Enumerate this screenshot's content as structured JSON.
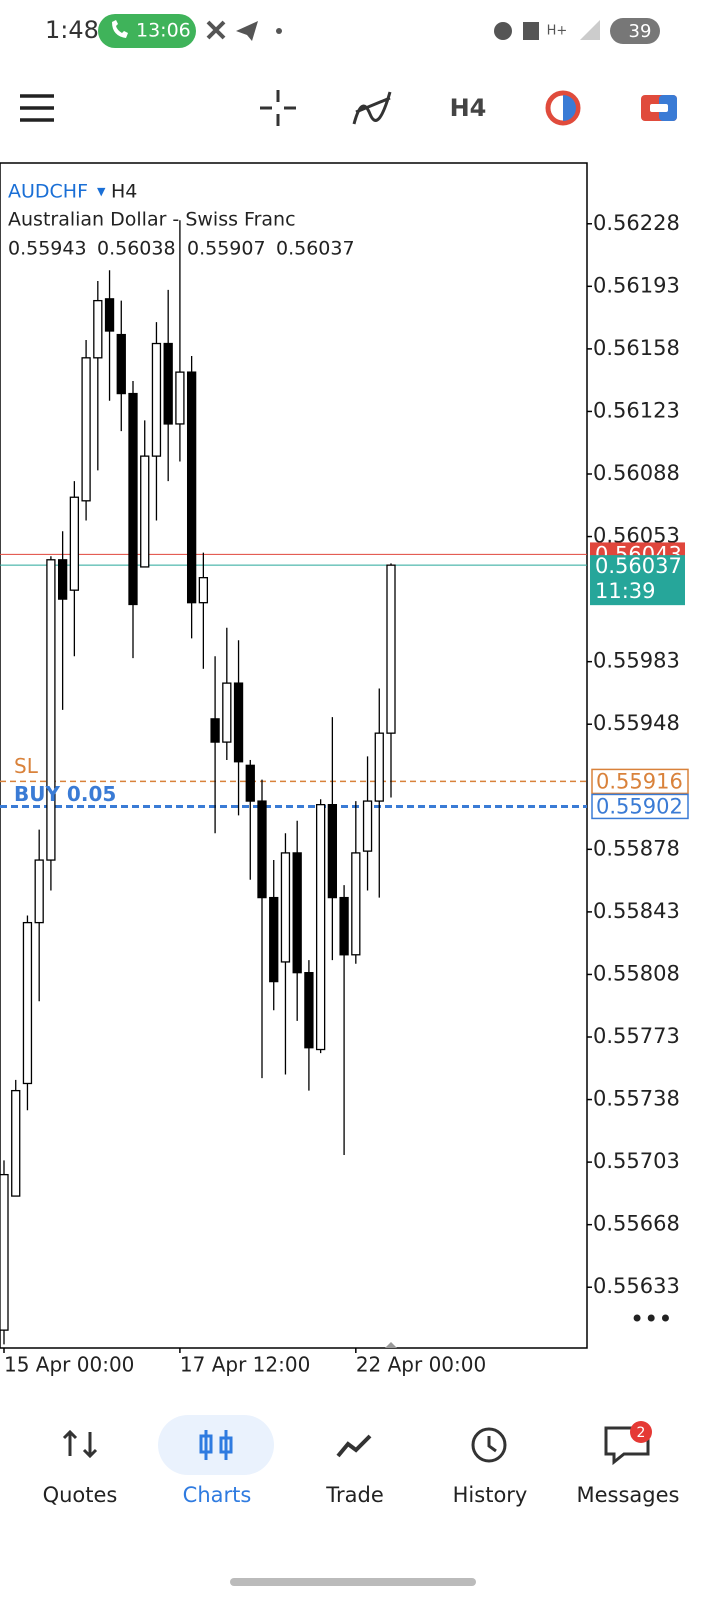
{
  "status_bar": {
    "time": "1:48",
    "call": "13:06",
    "battery": "39"
  },
  "toolbar": {
    "timeframe": "H4"
  },
  "chart_data": {
    "type": "candlestick",
    "symbol": "AUDCHF",
    "timeframe": "H4",
    "description": "Australian Dollar - Swiss Franc",
    "categories": [
      "15 Apr 00:00",
      null,
      null,
      null,
      null,
      null,
      null,
      null,
      null,
      null,
      null,
      null,
      null,
      null,
      null,
      "17 Apr 12:00",
      null,
      null,
      null,
      null,
      null,
      null,
      null,
      null,
      null,
      null,
      null,
      null,
      null,
      null,
      "22 Apr 00:00",
      null,
      null,
      null
    ],
    "open": [
      0.55609,
      0.55684,
      0.55747,
      0.55837,
      0.55872,
      0.5604,
      0.56023,
      0.56073,
      0.56153,
      0.56186,
      0.56166,
      0.56133,
      0.56036,
      0.56098,
      0.56161,
      0.56116,
      0.56145,
      0.56016,
      0.55951,
      0.55938,
      0.55971,
      0.55925,
      0.55905,
      0.55851,
      0.55815,
      0.55876,
      0.55809,
      0.55766,
      0.55903,
      0.55851,
      0.55819,
      0.55877,
      0.55905,
      0.55943
    ],
    "high": [
      0.55704,
      0.55749,
      0.55841,
      0.55889,
      0.56042,
      0.56056,
      0.56084,
      0.56163,
      0.56196,
      0.56202,
      0.56185,
      0.5614,
      0.56118,
      0.56173,
      0.56191,
      0.5623,
      0.56154,
      0.56044,
      0.55986,
      0.56002,
      0.55995,
      0.55928,
      0.55917,
      0.55872,
      0.55887,
      0.55894,
      0.55816,
      0.55906,
      0.55952,
      0.55858,
      0.55905,
      0.5593,
      0.55968,
      0.56038
    ],
    "low": [
      0.55601,
      0.55684,
      0.55732,
      0.55793,
      0.55855,
      0.55956,
      0.55986,
      0.56062,
      0.5609,
      0.56129,
      0.56112,
      0.55985,
      0.56036,
      0.56062,
      0.56084,
      0.56095,
      0.55996,
      0.55979,
      0.55887,
      0.55928,
      0.55897,
      0.55861,
      0.5575,
      0.55788,
      0.55752,
      0.55782,
      0.55743,
      0.55764,
      0.55816,
      0.55707,
      0.55814,
      0.55855,
      0.55851,
      0.55907
    ],
    "close": [
      0.55696,
      0.55743,
      0.55837,
      0.55872,
      0.5604,
      0.56018,
      0.56075,
      0.56153,
      0.56185,
      0.56168,
      0.56133,
      0.56015,
      0.56098,
      0.56161,
      0.56116,
      0.56145,
      0.56016,
      0.5603,
      0.55938,
      0.55971,
      0.55927,
      0.55905,
      0.55851,
      0.55804,
      0.55876,
      0.55809,
      0.55767,
      0.55903,
      0.55851,
      0.55819,
      0.55876,
      0.55905,
      0.55943,
      0.56037
    ],
    "ylim": [
      0.55599,
      0.56262
    ],
    "yticks": [
      0.56228,
      0.56193,
      0.56158,
      0.56123,
      0.56088,
      0.56053,
      0.55983,
      0.55948,
      0.55878,
      0.55843,
      0.55808,
      0.55773,
      0.55738,
      0.55703,
      0.55668,
      0.55633
    ],
    "price_lines": [
      {
        "value": 0.56043,
        "color": "#e0463c"
      },
      {
        "value": 0.56037,
        "color": "#26a69a",
        "time": "11:39"
      }
    ],
    "orders": [
      {
        "label": "SL",
        "value": 0.55916,
        "color": "#d9823b"
      },
      {
        "label": "BUY 0.05",
        "value": 0.55902,
        "color": "#3a7bd5"
      }
    ]
  },
  "nav": {
    "items": [
      "Quotes",
      "Charts",
      "Trade",
      "History",
      "Messages"
    ],
    "badge": "2"
  }
}
